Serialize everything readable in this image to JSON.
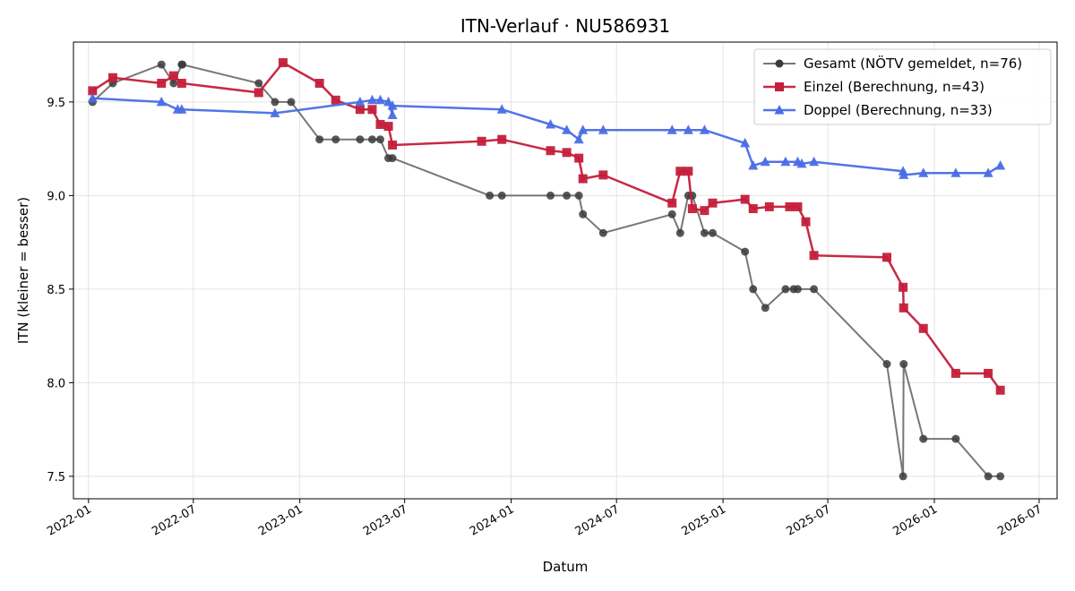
{
  "chart_data": {
    "type": "line",
    "title": "ITN-Verlauf · NU586931",
    "xlabel": "Datum",
    "ylabel": "ITN  (kleiner = besser)",
    "x_axis_type": "date",
    "x_ticks": [
      "2022-01",
      "2022-07",
      "2023-01",
      "2023-07",
      "2024-01",
      "2024-07",
      "2025-01",
      "2025-07",
      "2026-01",
      "2026-07"
    ],
    "y_ticks": [
      "7.5",
      "8.0",
      "8.5",
      "9.0",
      "9.5"
    ],
    "ylim": [
      7.38,
      9.82
    ],
    "xlim": [
      "2021-12-06",
      "2026-08-01"
    ],
    "grid": true,
    "legend_position": "top-right",
    "series": [
      {
        "name": "Gesamt (NÖTV gemeldet, n=76)",
        "color": "#555555",
        "marker": "circle",
        "points": [
          [
            "2022-01-08",
            9.5
          ],
          [
            "2022-02-12",
            9.6
          ],
          [
            "2022-05-07",
            9.7
          ],
          [
            "2022-05-28",
            9.6
          ],
          [
            "2022-06-11",
            9.7
          ],
          [
            "2022-06-12",
            9.7
          ],
          [
            "2022-10-22",
            9.6
          ],
          [
            "2022-11-19",
            9.5
          ],
          [
            "2022-12-17",
            9.5
          ],
          [
            "2023-02-04",
            9.3
          ],
          [
            "2023-03-04",
            9.3
          ],
          [
            "2023-04-15",
            9.3
          ],
          [
            "2023-05-06",
            9.3
          ],
          [
            "2023-05-20",
            9.3
          ],
          [
            "2023-06-03",
            9.2
          ],
          [
            "2023-06-10",
            9.2
          ],
          [
            "2023-11-25",
            9.0
          ],
          [
            "2023-12-16",
            9.0
          ],
          [
            "2024-03-09",
            9.0
          ],
          [
            "2024-04-06",
            9.0
          ],
          [
            "2024-04-27",
            9.0
          ],
          [
            "2024-05-04",
            8.9
          ],
          [
            "2024-06-08",
            8.8
          ],
          [
            "2024-10-05",
            8.9
          ],
          [
            "2024-10-19",
            8.8
          ],
          [
            "2024-11-02",
            9.0
          ],
          [
            "2024-11-09",
            9.0
          ],
          [
            "2024-11-30",
            8.8
          ],
          [
            "2024-12-14",
            8.8
          ],
          [
            "2025-02-08",
            8.7
          ],
          [
            "2025-02-22",
            8.5
          ],
          [
            "2025-03-15",
            8.4
          ],
          [
            "2025-04-19",
            8.5
          ],
          [
            "2025-05-03",
            8.5
          ],
          [
            "2025-05-10",
            8.5
          ],
          [
            "2025-06-07",
            8.5
          ],
          [
            "2025-10-11",
            8.1
          ],
          [
            "2025-11-08",
            7.5
          ],
          [
            "2025-11-09",
            8.1
          ],
          [
            "2025-12-13",
            7.7
          ],
          [
            "2026-02-07",
            7.7
          ],
          [
            "2026-04-04",
            7.5
          ],
          [
            "2026-04-25",
            7.5
          ]
        ]
      },
      {
        "name": "Einzel (Berechnung, n=43)",
        "color": "#c41e3a",
        "marker": "square",
        "points": [
          [
            "2022-01-08",
            9.56
          ],
          [
            "2022-02-12",
            9.63
          ],
          [
            "2022-05-07",
            9.6
          ],
          [
            "2022-05-28",
            9.64
          ],
          [
            "2022-06-11",
            9.6
          ],
          [
            "2022-10-22",
            9.55
          ],
          [
            "2022-12-03",
            9.71
          ],
          [
            "2023-02-04",
            9.6
          ],
          [
            "2023-03-04",
            9.51
          ],
          [
            "2023-04-15",
            9.46
          ],
          [
            "2023-05-06",
            9.46
          ],
          [
            "2023-05-20",
            9.38
          ],
          [
            "2023-06-03",
            9.37
          ],
          [
            "2023-06-10",
            9.27
          ],
          [
            "2023-11-11",
            9.29
          ],
          [
            "2023-12-16",
            9.3
          ],
          [
            "2024-03-09",
            9.24
          ],
          [
            "2024-04-06",
            9.23
          ],
          [
            "2024-04-27",
            9.2
          ],
          [
            "2024-05-04",
            9.09
          ],
          [
            "2024-06-08",
            9.11
          ],
          [
            "2024-10-05",
            8.96
          ],
          [
            "2024-10-19",
            9.13
          ],
          [
            "2024-11-02",
            9.13
          ],
          [
            "2024-11-09",
            8.93
          ],
          [
            "2024-11-30",
            8.92
          ],
          [
            "2024-12-14",
            8.96
          ],
          [
            "2025-02-08",
            8.98
          ],
          [
            "2025-02-22",
            8.93
          ],
          [
            "2025-03-22",
            8.94
          ],
          [
            "2025-04-26",
            8.94
          ],
          [
            "2025-05-10",
            8.94
          ],
          [
            "2025-05-24",
            8.86
          ],
          [
            "2025-06-07",
            8.68
          ],
          [
            "2025-10-11",
            8.67
          ],
          [
            "2025-11-08",
            8.51
          ],
          [
            "2025-11-09",
            8.4
          ],
          [
            "2025-12-13",
            8.29
          ],
          [
            "2026-02-07",
            8.05
          ],
          [
            "2026-04-04",
            8.05
          ],
          [
            "2026-04-25",
            7.96
          ]
        ]
      },
      {
        "name": "Doppel (Berechnung, n=33)",
        "color": "#4a6de5",
        "marker": "triangle",
        "points": [
          [
            "2022-01-08",
            9.52
          ],
          [
            "2022-05-07",
            9.5
          ],
          [
            "2022-06-04",
            9.46
          ],
          [
            "2022-06-11",
            9.46
          ],
          [
            "2022-11-19",
            9.44
          ],
          [
            "2023-04-15",
            9.5
          ],
          [
            "2023-05-06",
            9.51
          ],
          [
            "2023-05-20",
            9.51
          ],
          [
            "2023-06-03",
            9.5
          ],
          [
            "2023-06-10",
            9.43
          ],
          [
            "2023-06-10",
            9.48
          ],
          [
            "2023-12-16",
            9.46
          ],
          [
            "2024-03-09",
            9.38
          ],
          [
            "2024-04-06",
            9.35
          ],
          [
            "2024-04-27",
            9.3
          ],
          [
            "2024-05-04",
            9.35
          ],
          [
            "2024-06-08",
            9.35
          ],
          [
            "2024-10-05",
            9.35
          ],
          [
            "2024-11-02",
            9.35
          ],
          [
            "2024-11-30",
            9.35
          ],
          [
            "2025-02-08",
            9.28
          ],
          [
            "2025-02-22",
            9.16
          ],
          [
            "2025-03-15",
            9.18
          ],
          [
            "2025-04-19",
            9.18
          ],
          [
            "2025-05-10",
            9.18
          ],
          [
            "2025-05-17",
            9.17
          ],
          [
            "2025-06-07",
            9.18
          ],
          [
            "2025-11-08",
            9.13
          ],
          [
            "2025-11-09",
            9.11
          ],
          [
            "2025-12-13",
            9.12
          ],
          [
            "2026-02-07",
            9.12
          ],
          [
            "2026-04-04",
            9.12
          ],
          [
            "2026-04-25",
            9.16
          ]
        ]
      }
    ]
  }
}
